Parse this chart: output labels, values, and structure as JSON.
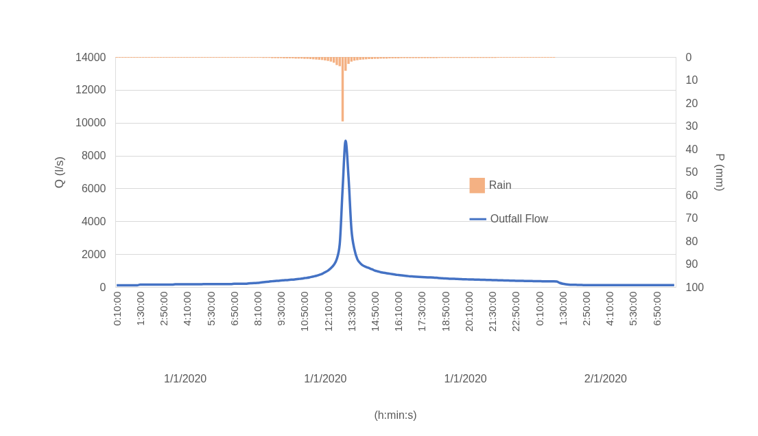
{
  "chart_data": {
    "type": "line",
    "categories": [
      "0:10:00",
      null,
      null,
      null,
      null,
      null,
      null,
      null,
      "1:30:00",
      null,
      null,
      null,
      null,
      null,
      null,
      null,
      "2:50:00",
      null,
      null,
      null,
      null,
      null,
      null,
      null,
      "4:10:00",
      null,
      null,
      null,
      null,
      null,
      null,
      null,
      "5:30:00",
      null,
      null,
      null,
      null,
      null,
      null,
      null,
      "6:50:00",
      null,
      null,
      null,
      null,
      null,
      null,
      null,
      "8:10:00",
      null,
      null,
      null,
      null,
      null,
      null,
      null,
      "9:30:00",
      null,
      null,
      null,
      null,
      null,
      null,
      null,
      "10:50:00",
      null,
      null,
      null,
      null,
      null,
      null,
      null,
      "12:10:00",
      null,
      null,
      null,
      null,
      null,
      null,
      null,
      "13:30:00",
      null,
      null,
      null,
      null,
      null,
      null,
      null,
      "14:50:00",
      null,
      null,
      null,
      null,
      null,
      null,
      null,
      "16:10:00",
      null,
      null,
      null,
      null,
      null,
      null,
      null,
      "17:30:00",
      null,
      null,
      null,
      null,
      null,
      null,
      null,
      "18:50:00",
      null,
      null,
      null,
      null,
      null,
      null,
      null,
      "20:10:00",
      null,
      null,
      null,
      null,
      null,
      null,
      null,
      "21:30:00",
      null,
      null,
      null,
      null,
      null,
      null,
      null,
      "22:50:00",
      null,
      null,
      null,
      null,
      null,
      null,
      null,
      "0:10:00",
      null,
      null,
      null,
      null,
      null,
      null,
      null,
      "1:30:00",
      null,
      null,
      null,
      null,
      null,
      null,
      null,
      "2:50:00",
      null,
      null,
      null,
      null,
      null,
      null,
      null,
      "4:10:00",
      null,
      null,
      null,
      null,
      null,
      null,
      null,
      "5:30:00",
      null,
      null,
      null,
      null,
      null,
      null,
      null,
      "6:50:00",
      null,
      null,
      null,
      null,
      null,
      null
    ],
    "series": [
      {
        "name": "Rain",
        "type": "bar",
        "axis": "y2",
        "color": "#f4b183",
        "values": [
          0.3,
          0.3,
          0.3,
          0.3,
          0.3,
          0.3,
          0.3,
          0.3,
          0.3,
          0.3,
          0.3,
          0.3,
          0.3,
          0.3,
          0.3,
          0.3,
          0.3,
          0.3,
          0.3,
          0.3,
          0.3,
          0.3,
          0.3,
          0.3,
          0.3,
          0.3,
          0.3,
          0.3,
          0.3,
          0.3,
          0.3,
          0.3,
          0.3,
          0.3,
          0.3,
          0.3,
          0.3,
          0.3,
          0.3,
          0.3,
          0.3,
          0.3,
          0.3,
          0.3,
          0.3,
          0.3,
          0.3,
          0.3,
          0.3,
          0.3,
          0.4,
          0.4,
          0.4,
          0.5,
          0.5,
          0.5,
          0.5,
          0.6,
          0.6,
          0.6,
          0.6,
          0.7,
          0.7,
          0.7,
          0.8,
          0.8,
          0.9,
          1.0,
          1.1,
          1.2,
          1.3,
          1.5,
          1.7,
          2.0,
          2.5,
          3.5,
          4,
          28,
          6,
          3,
          2,
          1.6,
          1.4,
          1.2,
          1.1,
          1,
          0.9,
          0.9,
          0.8,
          0.8,
          0.7,
          0.7,
          0.7,
          0.6,
          0.6,
          0.6,
          0.6,
          0.5,
          0.5,
          0.5,
          0.5,
          0.5,
          0.5,
          0.5,
          0.5,
          0.5,
          0.5,
          0.5,
          0.5,
          0.5,
          0.4,
          0.4,
          0.4,
          0.4,
          0.4,
          0.4,
          0.4,
          0.4,
          0.4,
          0.4,
          0.4,
          0.4,
          0.4,
          0.4,
          0.4,
          0.4,
          0.4,
          0.4,
          0.4,
          0.4,
          0.3,
          0.3,
          0.3,
          0.3,
          0.3,
          0.3,
          0.3,
          0.3,
          0.3,
          0.3,
          0.3,
          0.3,
          0.3,
          0.3,
          0.3,
          0.3,
          0.3,
          0.3,
          0.3,
          0.3,
          null,
          null,
          null,
          null,
          null,
          null,
          null,
          null,
          null,
          null,
          null,
          null,
          null,
          null,
          null,
          null,
          null,
          null,
          null,
          null,
          null,
          null,
          null,
          null,
          null,
          null,
          null,
          null,
          null,
          null,
          null,
          null,
          null,
          null,
          null,
          null,
          null,
          null,
          null,
          null,
          null
        ]
      },
      {
        "name": "Outfall Flow",
        "color": "#4472c4",
        "values": [
          100,
          100,
          100,
          100,
          100,
          100,
          100,
          100,
          150,
          150,
          150,
          150,
          150,
          150,
          150,
          150,
          150,
          150,
          150,
          150,
          170,
          170,
          170,
          170,
          170,
          170,
          170,
          170,
          170,
          170,
          180,
          180,
          180,
          180,
          180,
          180,
          180,
          180,
          180,
          180,
          200,
          200,
          200,
          200,
          200,
          220,
          230,
          240,
          250,
          270,
          290,
          310,
          330,
          350,
          370,
          380,
          400,
          410,
          420,
          440,
          450,
          470,
          490,
          510,
          540,
          560,
          600,
          640,
          680,
          740,
          800,
          900,
          1000,
          1150,
          1350,
          1700,
          2600,
          6000,
          8900,
          6700,
          3500,
          2300,
          1700,
          1450,
          1300,
          1220,
          1150,
          1080,
          1000,
          950,
          900,
          870,
          840,
          810,
          780,
          750,
          730,
          710,
          690,
          670,
          650,
          640,
          630,
          620,
          610,
          600,
          590,
          580,
          570,
          560,
          540,
          530,
          520,
          510,
          500,
          500,
          490,
          480,
          470,
          470,
          460,
          460,
          450,
          450,
          440,
          440,
          430,
          430,
          420,
          420,
          410,
          410,
          400,
          400,
          390,
          390,
          380,
          380,
          380,
          370,
          370,
          370,
          360,
          360,
          360,
          350,
          350,
          340,
          340,
          340,
          330,
          250,
          200,
          170,
          150,
          140,
          140,
          130,
          130,
          120,
          120,
          120,
          120,
          110,
          110,
          110,
          110,
          110,
          110,
          110,
          110,
          110,
          110,
          110,
          110,
          110,
          110,
          110,
          110,
          110,
          110,
          110,
          110,
          110,
          110,
          110,
          110,
          110,
          110,
          110,
          110
        ]
      }
    ],
    "ylim": [
      0,
      14000
    ],
    "yticks": [
      0,
      2000,
      4000,
      6000,
      8000,
      10000,
      12000,
      14000
    ],
    "y2lim": [
      100,
      0
    ],
    "y2ticks": [
      0,
      10,
      20,
      30,
      40,
      50,
      60,
      70,
      80,
      90,
      100
    ],
    "ylabel": "Q (l/s)",
    "y2label": "P (mm)",
    "annotations": [
      "1/1/2020",
      "1/1/2020",
      "1/1/2020",
      "2/1/2020",
      "(h:min:s)"
    ],
    "grid": "y",
    "legend": "right",
    "line_style": "solid",
    "marker": "none"
  }
}
